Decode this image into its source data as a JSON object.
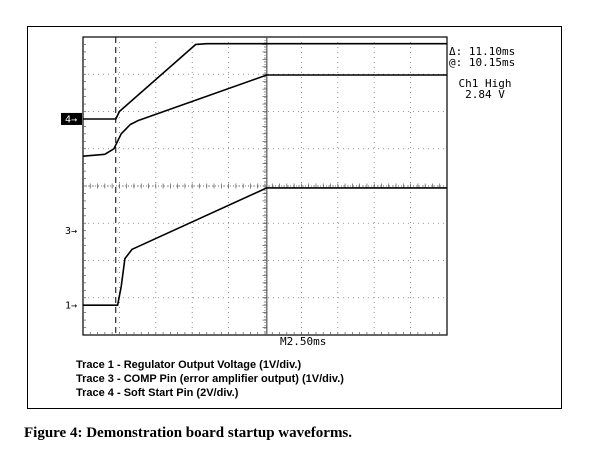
{
  "chart_data": {
    "type": "line",
    "x_unit": "div",
    "xlim": [
      0,
      10
    ],
    "ylim": [
      0,
      8
    ],
    "timebase": "M2.50ms",
    "cursor_delta": "Δ: 11.10ms",
    "cursor_at": "@: 10.15ms",
    "measurement_label": "Ch1 High",
    "measurement_value": "2.84 V",
    "channel_markers": [
      {
        "label": "4→",
        "level": 5.8,
        "filled": true
      },
      {
        "label": "3→",
        "level": 2.8,
        "filled": false
      },
      {
        "label": "1→",
        "level": 0.8,
        "filled": false
      }
    ],
    "cursor_x": [
      0.9,
      5.05
    ],
    "series": [
      {
        "id": "trace4",
        "x": [
          0,
          0.9,
          1.0,
          3.1,
          3.4,
          10
        ],
        "y": [
          5.8,
          5.8,
          6.0,
          7.8,
          7.82,
          7.82
        ]
      },
      {
        "id": "trace3",
        "x": [
          0,
          0.6,
          0.85,
          1.05,
          1.3,
          1.5,
          5.05,
          10
        ],
        "y": [
          4.8,
          4.85,
          5.0,
          5.4,
          5.65,
          5.75,
          6.98,
          6.98
        ]
      },
      {
        "id": "trace1",
        "x": [
          0,
          0.95,
          1.05,
          1.15,
          1.35,
          5.05,
          10
        ],
        "y": [
          0.8,
          0.8,
          1.3,
          2.05,
          2.3,
          3.95,
          3.95
        ]
      }
    ]
  },
  "legend": {
    "trace1": "Trace 1 - Regulator Output Voltage (1V/div.)",
    "trace3": "Trace 3 - COMP Pin (error amplifier output) (1V/div.)",
    "trace4": "Trace 4 - Soft Start Pin (2V/div.)"
  },
  "caption": "Figure 4: Demonstration board startup waveforms."
}
